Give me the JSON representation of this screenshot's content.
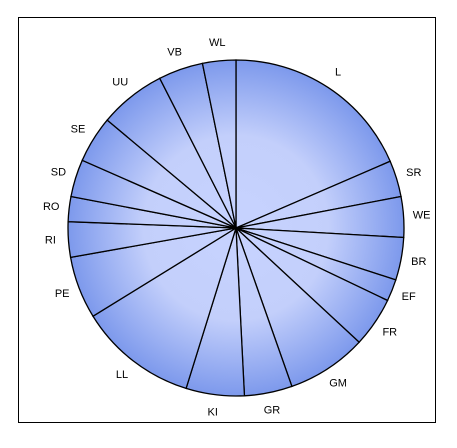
{
  "chart_data": {
    "type": "pie",
    "title": "",
    "legend": "none",
    "categories": [
      "L",
      "SR",
      "WE",
      "BR",
      "EF",
      "FR",
      "GM",
      "GR",
      "KI",
      "LL",
      "PE",
      "RI",
      "RO",
      "SD",
      "SE",
      "UU",
      "VB",
      "WL"
    ],
    "values": [
      18.5,
      3.5,
      3.9,
      4.1,
      2.1,
      4.8,
      7.7,
      4.6,
      5.6,
      11.4,
      6.0,
      3.4,
      2.4,
      3.6,
      4.5,
      6.4,
      4.3,
      3.2
    ],
    "colors": {
      "slice_edge": "#dde6ff",
      "slice_center": "#c7d3ff",
      "slice_outer": "#7d99ec",
      "stroke": "#000000"
    }
  }
}
